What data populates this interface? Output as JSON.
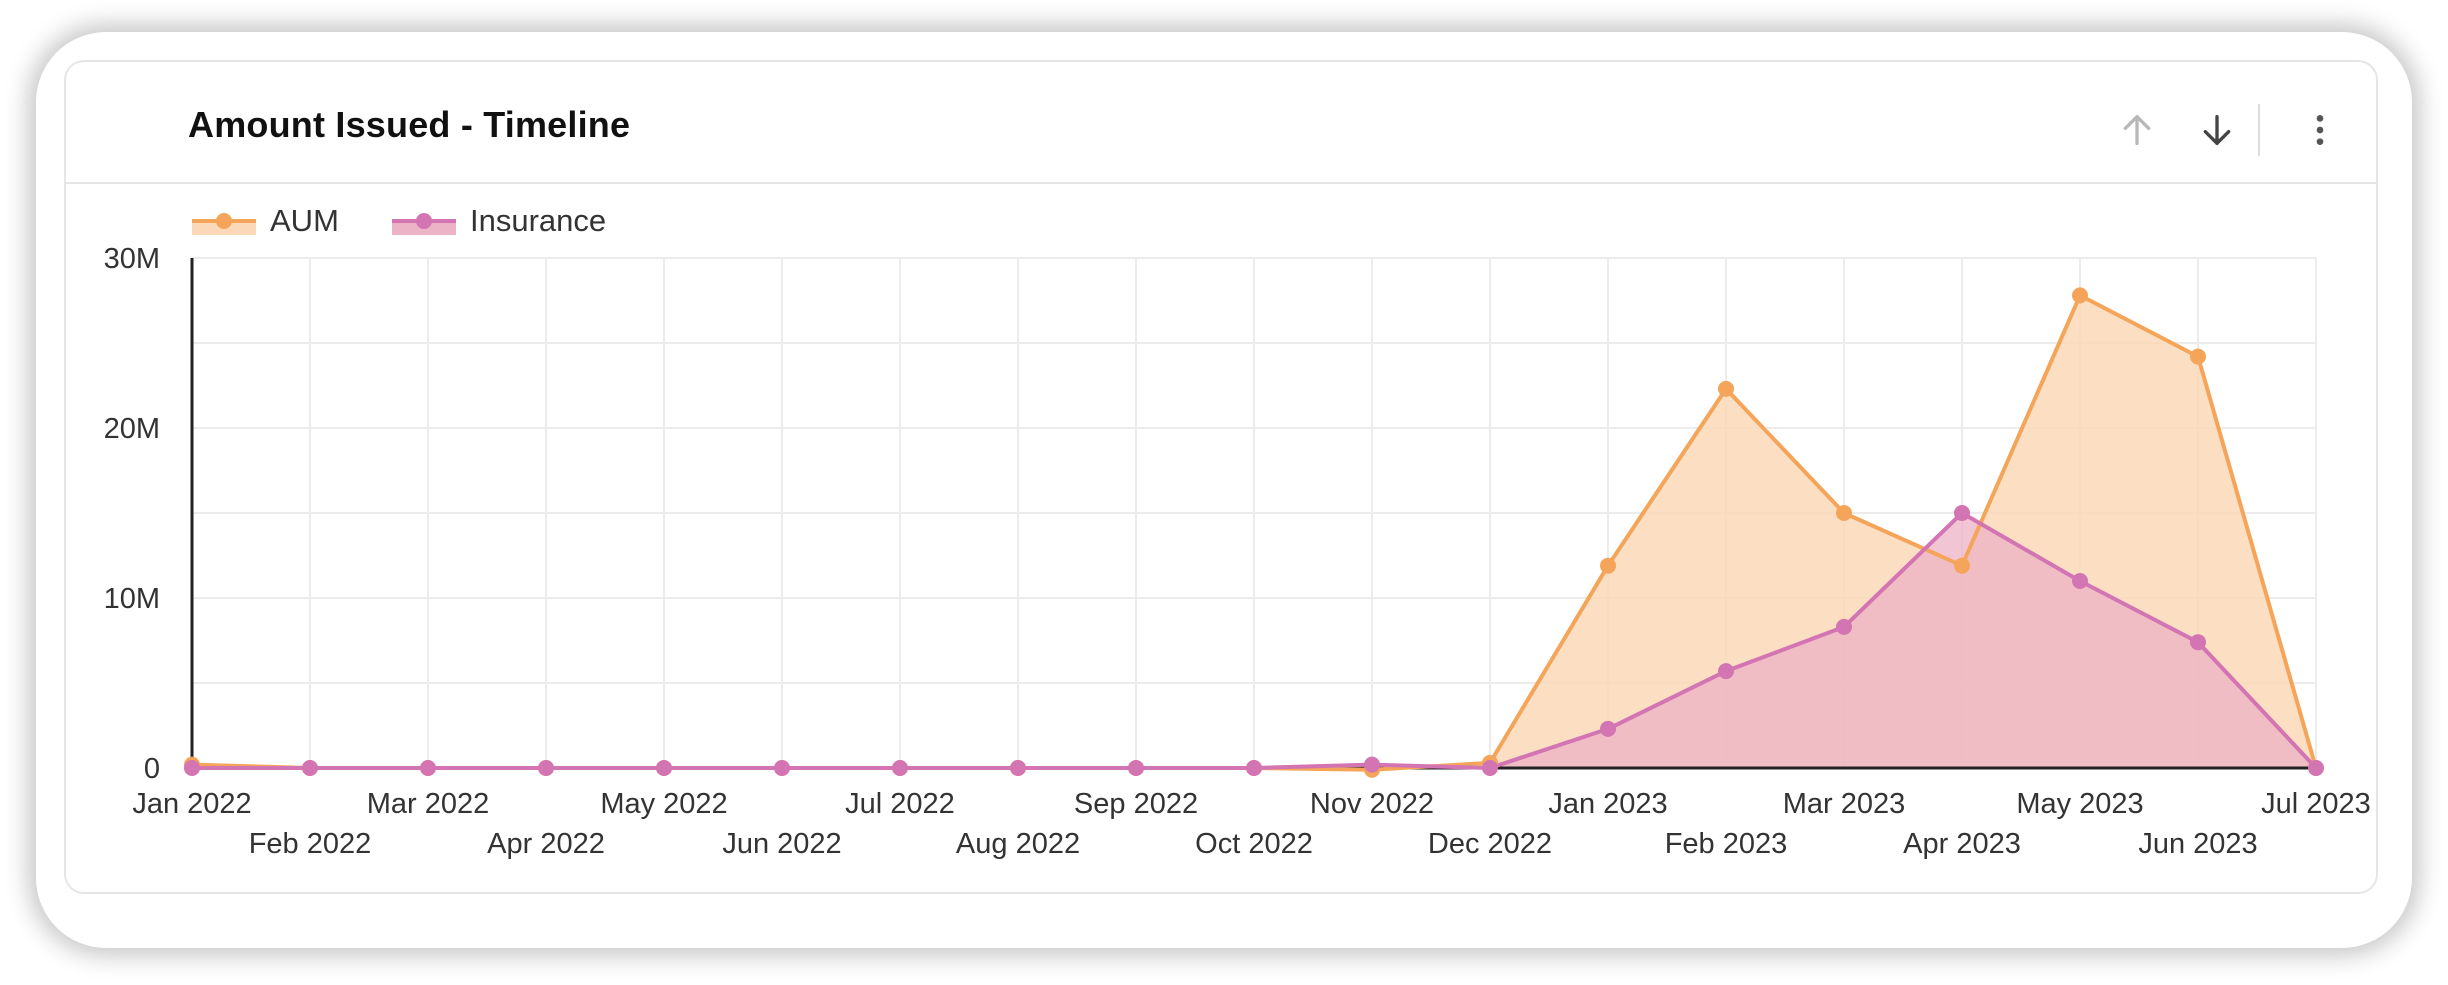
{
  "card": {
    "title": "Amount Issued - Timeline",
    "icons": {
      "up": "arrow-up-icon",
      "down": "arrow-down-icon",
      "more": "more-vertical-icon"
    }
  },
  "chart_data": {
    "type": "area",
    "title": "Amount Issued - Timeline",
    "xlabel": "",
    "ylabel": "",
    "categories": [
      "Jan 2022",
      "Feb 2022",
      "Mar 2022",
      "Apr 2022",
      "May 2022",
      "Jun 2022",
      "Jul 2022",
      "Aug 2022",
      "Sep 2022",
      "Oct 2022",
      "Nov 2022",
      "Dec 2022",
      "Jan 2023",
      "Feb 2023",
      "Mar 2023",
      "Apr 2023",
      "May 2023",
      "Jun 2023",
      "Jul 2023"
    ],
    "series": [
      {
        "name": "AUM",
        "color": "#f4a55a",
        "fill": "#fbd9b8",
        "values": [
          200000,
          0,
          0,
          0,
          0,
          0,
          0,
          0,
          0,
          0,
          -100000,
          300000,
          11900000,
          22300000,
          15000000,
          11900000,
          27800000,
          24200000,
          0
        ]
      },
      {
        "name": "Insurance",
        "color": "#d374b3",
        "fill": "#ecb2c6",
        "values": [
          0,
          0,
          0,
          0,
          0,
          0,
          0,
          0,
          0,
          0,
          200000,
          0,
          2300000,
          5700000,
          8300000,
          15000000,
          11000000,
          7400000,
          0
        ]
      }
    ],
    "ylim": [
      0,
      30000000
    ],
    "yticks": [
      {
        "value": 0,
        "label": "0"
      },
      {
        "value": 10000000,
        "label": "10M"
      },
      {
        "value": 20000000,
        "label": "20M"
      },
      {
        "value": 30000000,
        "label": "30M"
      }
    ],
    "grid": true,
    "legend_position": "top-left"
  }
}
